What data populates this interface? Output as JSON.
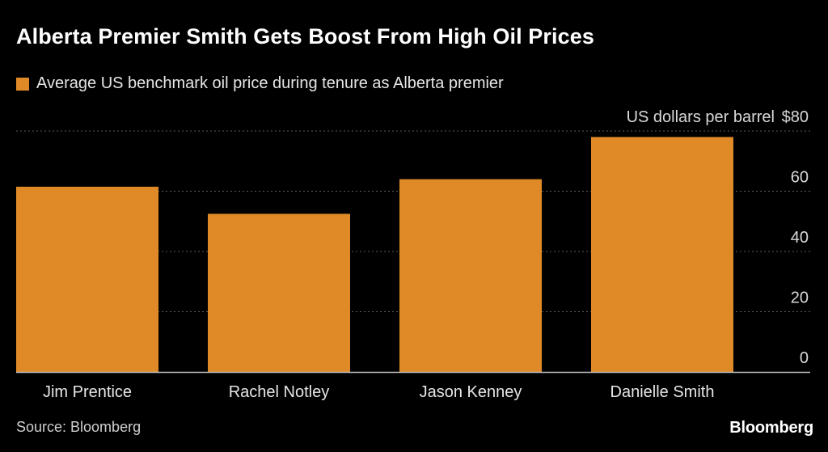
{
  "header": {
    "title": "Alberta Premier Smith Gets Boost From High Oil Prices"
  },
  "legend": {
    "label": "Average US benchmark oil price during tenure as Alberta premier",
    "color": "#E08A27"
  },
  "chart_data": {
    "type": "bar",
    "title": "Alberta Premier Smith Gets Boost From High Oil Prices",
    "categories": [
      "Jim Prentice",
      "Rachel Notley",
      "Jason Kenney",
      "Danielle Smith"
    ],
    "series": [
      {
        "name": "Average US benchmark oil price during tenure as Alberta premier",
        "values": [
          61.5,
          52.5,
          64,
          78
        ]
      }
    ],
    "ylabel": "US dollars per barrel",
    "ytick_labels": [
      "0",
      "20",
      "40",
      "60",
      "$80"
    ],
    "yticks": [
      0,
      20,
      40,
      60,
      80
    ],
    "ylim": [
      0,
      80
    ],
    "grid": true,
    "colors": {
      "bar": "#E08A27",
      "grid": "#5a5a5a",
      "axis": "#bdbdbd",
      "tick_text": "#d8d8d8",
      "category_text": "#e6e6e6"
    }
  },
  "footer": {
    "source": "Source: Bloomberg",
    "brand": "Bloomberg"
  }
}
